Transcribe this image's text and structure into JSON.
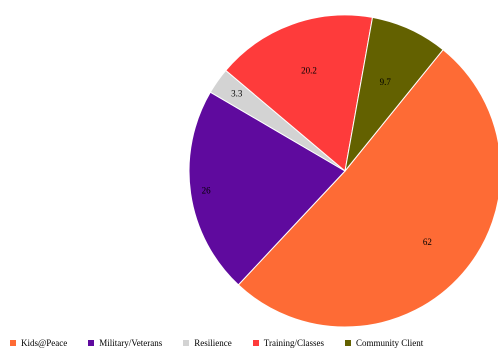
{
  "chart_data": {
    "type": "pie",
    "title": "",
    "legend_position": "bottom",
    "slices": [
      {
        "label": "Kids@Peace",
        "value": 62,
        "value_label": "62",
        "color": "#fe6b35"
      },
      {
        "label": "Military/Veterans",
        "value": 26,
        "value_label": "26",
        "color": "#5f0a9e"
      },
      {
        "label": "Resilience",
        "value": 3.3,
        "value_label": "3.3",
        "color": "#d3d3d3"
      },
      {
        "label": "Training/Classes",
        "value": 20.2,
        "value_label": "20.2",
        "color": "#fe3b3b"
      },
      {
        "label": "Community Client",
        "value": 9.7,
        "value_label": "9.7",
        "color": "#636100"
      }
    ]
  }
}
